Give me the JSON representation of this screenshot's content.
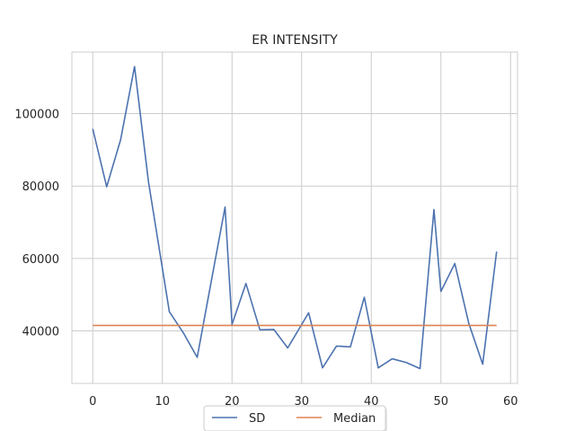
{
  "colors": {
    "background": "#ffffff",
    "grid": "#cccccc",
    "frame": "#cccccc",
    "text": "#262626",
    "sd": "#4c72b0",
    "median": "#dd8452"
  },
  "chart_data": {
    "type": "line",
    "title": "ER INTENSITY",
    "xlabel": "",
    "ylabel": "",
    "xlim": [
      -3,
      61
    ],
    "ylim": [
      25500,
      117000
    ],
    "xticks": [
      0,
      10,
      20,
      30,
      40,
      50,
      60
    ],
    "yticks": [
      40000,
      60000,
      80000,
      100000
    ],
    "grid": true,
    "legend_position": "bottom-center",
    "series": [
      {
        "name": "SD",
        "color": "#4c72b0",
        "x": [
          0,
          2,
          4,
          6,
          8,
          11,
          13,
          15,
          17,
          19,
          20,
          22,
          24,
          26,
          28,
          31,
          33,
          35,
          37,
          39,
          41,
          43,
          45,
          47,
          49,
          50,
          52,
          54,
          56,
          58
        ],
        "y": [
          95800,
          79800,
          92800,
          113000,
          81200,
          45300,
          39500,
          32700,
          53500,
          74200,
          41800,
          53100,
          40300,
          40400,
          35300,
          45000,
          29800,
          35800,
          35600,
          49300,
          29800,
          32300,
          31300,
          29600,
          73500,
          50900,
          58600,
          42100,
          30800,
          61900
        ]
      },
      {
        "name": "Median",
        "color": "#dd8452",
        "x": [
          0,
          58
        ],
        "y": [
          41500,
          41500
        ]
      }
    ]
  }
}
